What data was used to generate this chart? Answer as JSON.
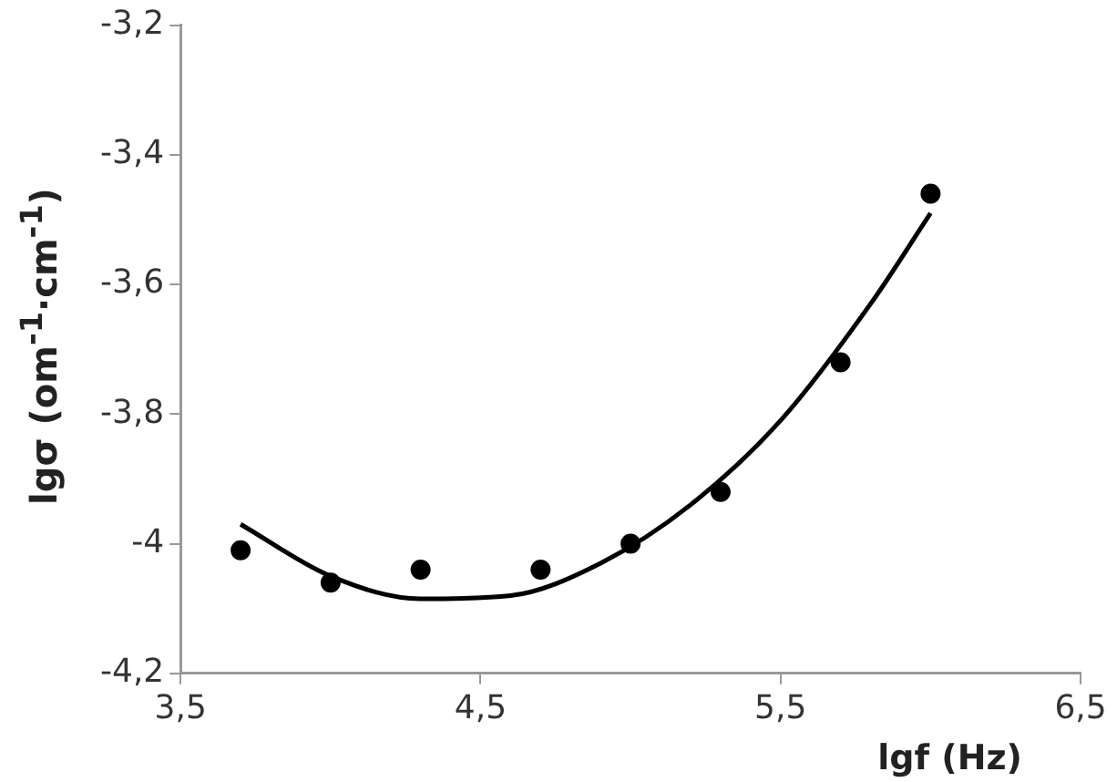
{
  "chart_data": {
    "type": "scatter",
    "xlabel": "lgf (Hz)",
    "ylabel": "lgσ (om$^{-1}$·cm$^{-1}$)",
    "xlim": [
      3.5,
      6.5
    ],
    "xticks": [
      {
        "value": 3.5,
        "label": "3,5"
      },
      {
        "value": 4.5,
        "label": "4,5"
      },
      {
        "value": 5.5,
        "label": "5,5"
      },
      {
        "value": 6.5,
        "label": "6,5"
      }
    ],
    "ylim": [
      -4.2,
      -3.2
    ],
    "yticks": [
      {
        "value": -4.2,
        "label": "-4,2"
      },
      -4,
      {
        "value": -3.8,
        "label": "-3,8"
      },
      {
        "value": -3.6,
        "label": "-3,6"
      },
      {
        "value": -3.4,
        "label": "-3,4"
      },
      {
        "value": -3.2,
        "label": "-3,2"
      }
    ],
    "grid": false,
    "legend": false,
    "series": [
      {
        "type": "scatter",
        "color": "#000000",
        "marker": "circle",
        "x": [
          3.7,
          4.0,
          4.3,
          4.7,
          5.0,
          5.3,
          5.7,
          6.0
        ],
        "values": [
          -4.01,
          -4.06,
          -4.04,
          -4.04,
          -4.0,
          -3.92,
          -3.72,
          -3.46
        ]
      },
      {
        "type": "line",
        "color": "#000000",
        "marker": "none",
        "line_style": "solid",
        "x": [
          3.7,
          4.0,
          4.3,
          4.6,
          4.9,
          5.2,
          5.5,
          5.8,
          6.0
        ],
        "values": [
          -3.97,
          -4.05,
          -4.085,
          -4.08,
          -4.03,
          -3.94,
          -3.81,
          -3.63,
          -3.49
        ]
      }
    ]
  }
}
